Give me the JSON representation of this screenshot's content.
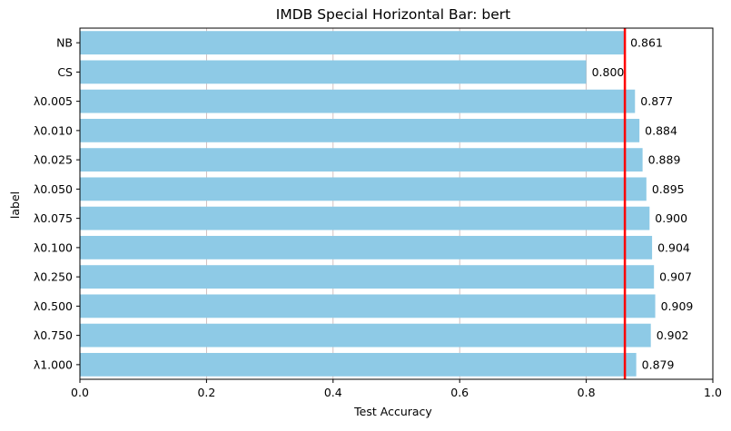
{
  "chart_data": {
    "type": "bar",
    "orientation": "horizontal",
    "title": "IMDB Special Horizontal Bar: bert",
    "xlabel": "Test Accuracy",
    "ylabel": "label",
    "xlim": [
      0,
      1.0
    ],
    "xticks": [
      "0.0",
      "0.2",
      "0.4",
      "0.6",
      "0.8",
      "1.0"
    ],
    "xtick_values": [
      0,
      0.2,
      0.4,
      0.6,
      0.8,
      1.0
    ],
    "grid": "vertical",
    "categories": [
      "NB",
      "CS",
      "λ0.005",
      "λ0.010",
      "λ0.025",
      "λ0.050",
      "λ0.075",
      "λ0.100",
      "λ0.250",
      "λ0.500",
      "λ0.750",
      "λ1.000"
    ],
    "values": [
      0.861,
      0.8,
      0.877,
      0.884,
      0.889,
      0.895,
      0.9,
      0.904,
      0.907,
      0.909,
      0.902,
      0.879
    ],
    "value_labels": [
      "0.861",
      "0.800",
      "0.877",
      "0.884",
      "0.889",
      "0.895",
      "0.900",
      "0.904",
      "0.907",
      "0.909",
      "0.902",
      "0.879"
    ],
    "reference_line": {
      "x": 0.861,
      "color": "#ff0000"
    },
    "bar_color": "#8ecae6",
    "grid_color": "#c8b4b4"
  }
}
